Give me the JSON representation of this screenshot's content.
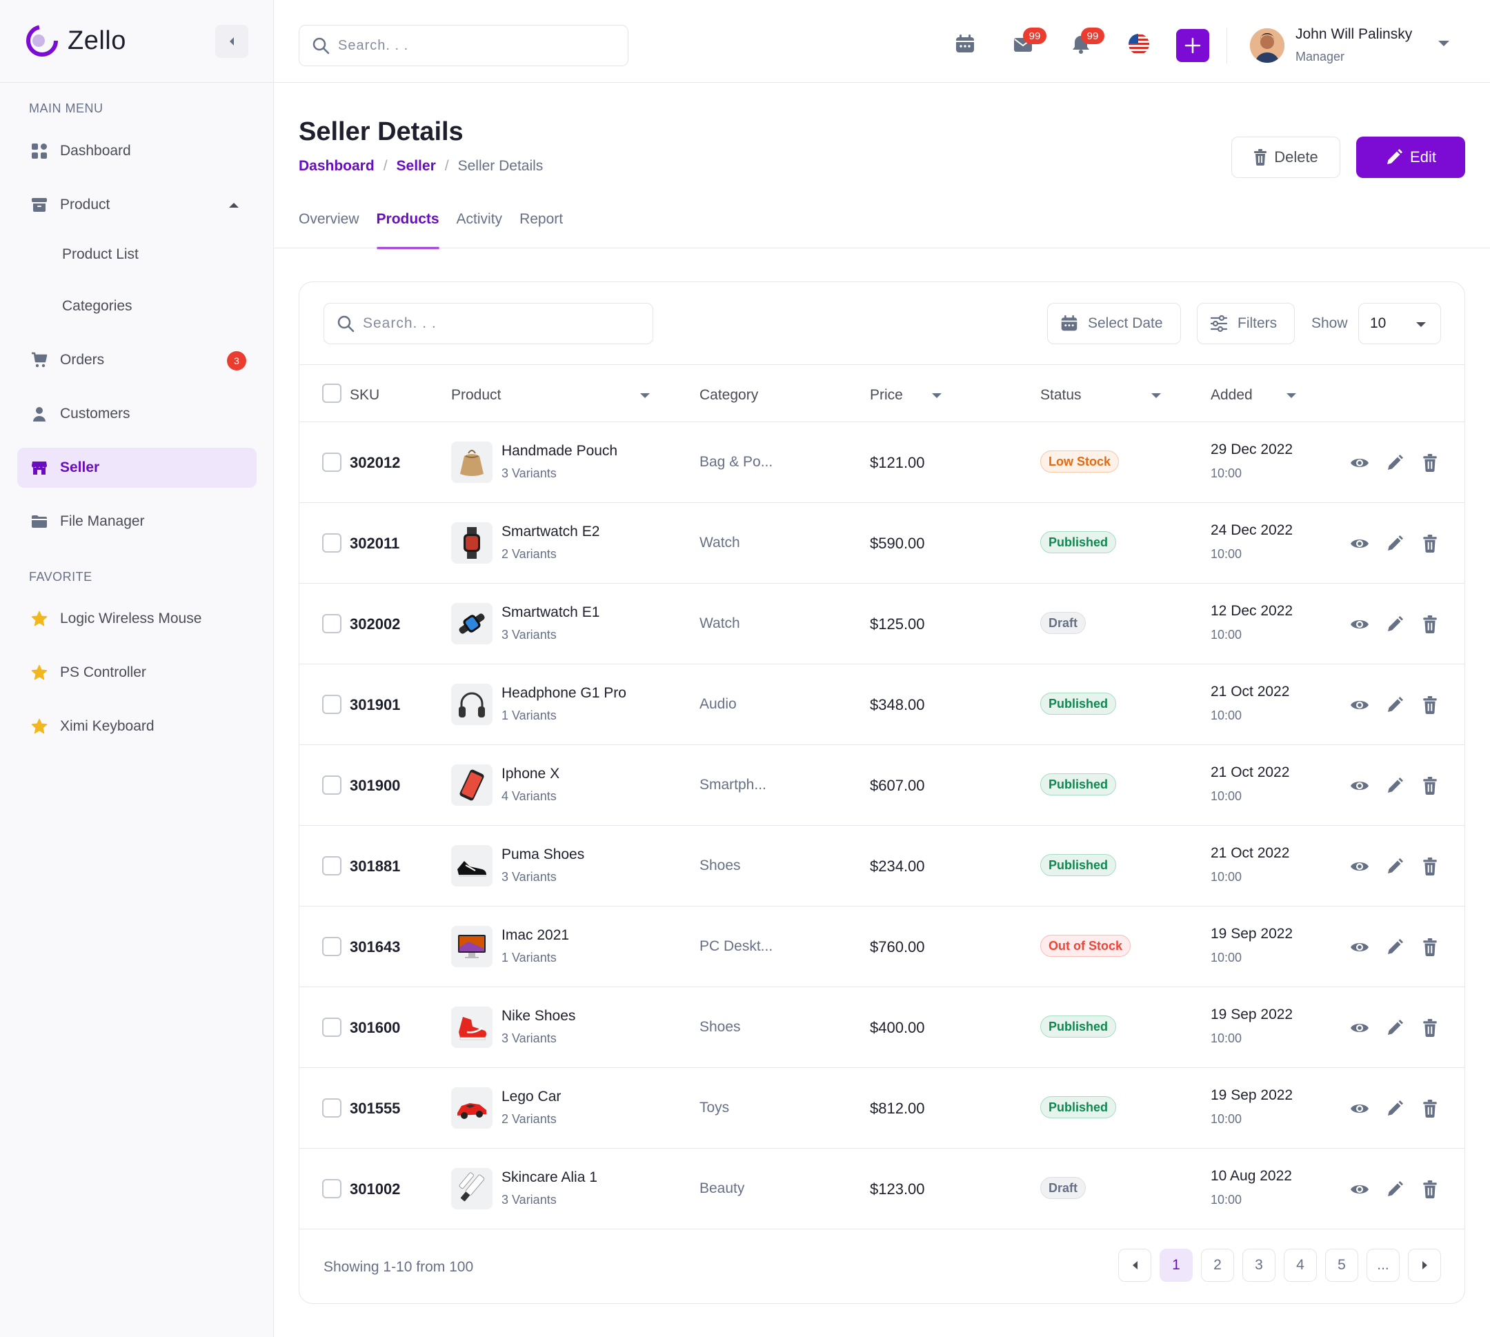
{
  "brand": {
    "name": "Zello"
  },
  "sidebar": {
    "main_menu_label": "MAIN MENU",
    "favorite_label": "FAVORITE",
    "items": [
      {
        "label": "Dashboard",
        "icon": "dashboard-grid-icon"
      },
      {
        "label": "Product",
        "icon": "archive-box-icon",
        "expanded": true
      },
      {
        "label": "Product List"
      },
      {
        "label": "Categories"
      },
      {
        "label": "Orders",
        "icon": "cart-icon",
        "badge": "3"
      },
      {
        "label": "Customers",
        "icon": "user-icon"
      },
      {
        "label": "Seller",
        "icon": "store-icon",
        "active": true
      },
      {
        "label": "File Manager",
        "icon": "folder-icon"
      }
    ],
    "favorites": [
      {
        "label": "Logic Wireless Mouse",
        "icon": "star-icon"
      },
      {
        "label": "PS Controller",
        "icon": "star-icon"
      },
      {
        "label": "Ximi Keyboard",
        "icon": "star-icon"
      }
    ]
  },
  "header": {
    "search_placeholder": "Search. . .",
    "mail_badge": "99",
    "notification_badge": "99",
    "user": {
      "name": "John Will Palinsky",
      "role": "Manager"
    }
  },
  "page": {
    "title": "Seller Details",
    "breadcrumb": [
      "Dashboard",
      "Seller",
      "Seller Details"
    ],
    "delete_label": "Delete",
    "edit_label": "Edit",
    "tabs": [
      "Overview",
      "Products",
      "Activity",
      "Report"
    ],
    "active_tab": "Products"
  },
  "toolbar": {
    "search_placeholder": "Search. . .",
    "date_label": "Select Date",
    "filters_label": "Filters",
    "show_label": "Show",
    "show_value": "10"
  },
  "table": {
    "columns": [
      "SKU",
      "Product",
      "Category",
      "Price",
      "Status",
      "Added"
    ],
    "rows": [
      {
        "sku": "302012",
        "product": "Handmade Pouch",
        "variants": "3 Variants",
        "category": "Bag & Po...",
        "price": "$121.00",
        "status": "Low Stock",
        "status_type": "low",
        "date": "29 Dec 2022",
        "time": "10:00",
        "thumb": "pouch"
      },
      {
        "sku": "302011",
        "product": "Smartwatch E2",
        "variants": "2 Variants",
        "category": "Watch",
        "price": "$590.00",
        "status": "Published",
        "status_type": "published",
        "date": "24 Dec 2022",
        "time": "10:00",
        "thumb": "watch"
      },
      {
        "sku": "302002",
        "product": "Smartwatch E1",
        "variants": "3 Variants",
        "category": "Watch",
        "price": "$125.00",
        "status": "Draft",
        "status_type": "draft",
        "date": "12 Dec 2022",
        "time": "10:00",
        "thumb": "watch2"
      },
      {
        "sku": "301901",
        "product": "Headphone G1 Pro",
        "variants": "1 Variants",
        "category": "Audio",
        "price": "$348.00",
        "status": "Published",
        "status_type": "published",
        "date": "21 Oct 2022",
        "time": "10:00",
        "thumb": "headphone"
      },
      {
        "sku": "301900",
        "product": "Iphone X",
        "variants": "4 Variants",
        "category": "Smartph...",
        "price": "$607.00",
        "status": "Published",
        "status_type": "published",
        "date": "21 Oct 2022",
        "time": "10:00",
        "thumb": "phone"
      },
      {
        "sku": "301881",
        "product": "Puma Shoes",
        "variants": "3 Variants",
        "category": "Shoes",
        "price": "$234.00",
        "status": "Published",
        "status_type": "published",
        "date": "21 Oct 2022",
        "time": "10:00",
        "thumb": "shoe"
      },
      {
        "sku": "301643",
        "product": "Imac 2021",
        "variants": "1 Variants",
        "category": "PC Deskt...",
        "price": "$760.00",
        "status": "Out of Stock",
        "status_type": "out",
        "date": "19 Sep 2022",
        "time": "10:00",
        "thumb": "imac"
      },
      {
        "sku": "301600",
        "product": "Nike Shoes",
        "variants": "3 Variants",
        "category": "Shoes",
        "price": "$400.00",
        "status": "Published",
        "status_type": "published",
        "date": "19 Sep 2022",
        "time": "10:00",
        "thumb": "nike"
      },
      {
        "sku": "301555",
        "product": "Lego Car",
        "variants": "2 Variants",
        "category": "Toys",
        "price": "$812.00",
        "status": "Published",
        "status_type": "published",
        "date": "19 Sep 2022",
        "time": "10:00",
        "thumb": "car"
      },
      {
        "sku": "301002",
        "product": "Skincare Alia 1",
        "variants": "3 Variants",
        "category": "Beauty",
        "price": "$123.00",
        "status": "Draft",
        "status_type": "draft",
        "date": "10 Aug 2022",
        "time": "10:00",
        "thumb": "skincare"
      }
    ]
  },
  "footer": {
    "showing": "Showing 1-10 from 100",
    "pages": [
      "1",
      "2",
      "3",
      "4",
      "5",
      "..."
    ],
    "current_page": "1"
  },
  "colors": {
    "accent": "#7c0cd3",
    "accent_text": "#6a0dbf",
    "badge": "#eb3d2f"
  }
}
